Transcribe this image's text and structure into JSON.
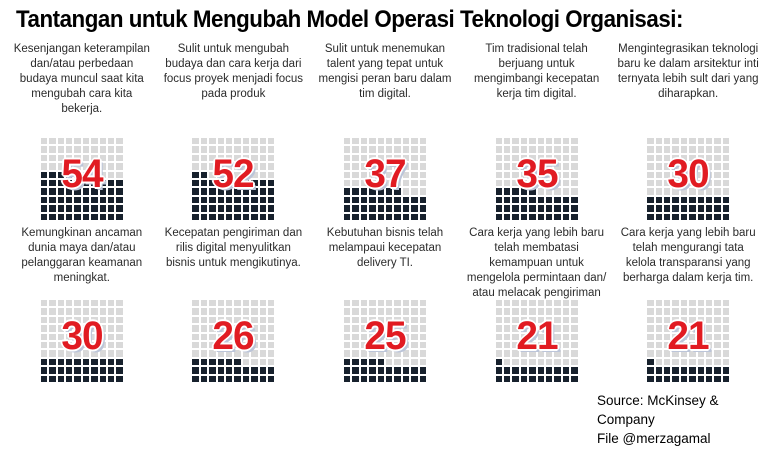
{
  "title": "Tantangan untuk Mengubah Model Operasi Teknologi Organisasi:",
  "source": {
    "line1": "Source: McKinsey & Company",
    "line2": "File @merzagamal"
  },
  "colors": {
    "filled_square": "#17212d",
    "empty_square": "#d9d9d9",
    "number": "#e11b22",
    "number_shadow": "#bcc5d9"
  },
  "chart_data": {
    "type": "heatmap",
    "subtype": "waffle-grid",
    "title": "Tantangan untuk Mengubah Model Operasi Teknologi Organisasi:",
    "waffle": {
      "grid": 10,
      "total": 100,
      "fill_direction": "bottom-left"
    },
    "legend_position": "none",
    "rows": [
      {
        "items": [
          {
            "label": "Kesenjangan keterampilan dan/atau perbedaan budaya muncul saat kita mengubah cara kita bekerja.",
            "value": 54
          },
          {
            "label": "Sulit untuk mengubah budaya dan cara kerja dari focus proyek menjadi focus pada produk",
            "value": 52
          },
          {
            "label": "Sulit untuk menemukan talent yang tepat untuk mengisi peran baru dalam tim digital.",
            "value": 37
          },
          {
            "label": "Tim tradisional telah berjuang untuk mengimbangi kecepatan kerja tim digital.",
            "value": 35
          },
          {
            "label": "Mengintegrasikan teknologi baru ke dalam arsitektur inti ternyata lebih sult dari yang diharapkan.",
            "value": 30
          }
        ]
      },
      {
        "items": [
          {
            "label": "Kemungkinan ancaman dunia maya dan/atau pelanggaran keamanan meningkat.",
            "value": 30
          },
          {
            "label": "Kecepatan pengiriman dan rilis digital menyulitkan bisnis untuk mengikutinya.",
            "value": 26
          },
          {
            "label": "Kebutuhan bisnis telah melampaui kecepatan delivery TI.",
            "value": 25
          },
          {
            "label": "Cara kerja yang lebih baru telah membatasi kemampuan untuk mengelola permintaan dan/ atau melacak pengiriman",
            "value": 21
          },
          {
            "label": "Cara kerja yang lebih baru telah mengurangi tata kelola transparansi yang berharga dalam kerja tim.",
            "value": 21
          }
        ]
      }
    ]
  }
}
